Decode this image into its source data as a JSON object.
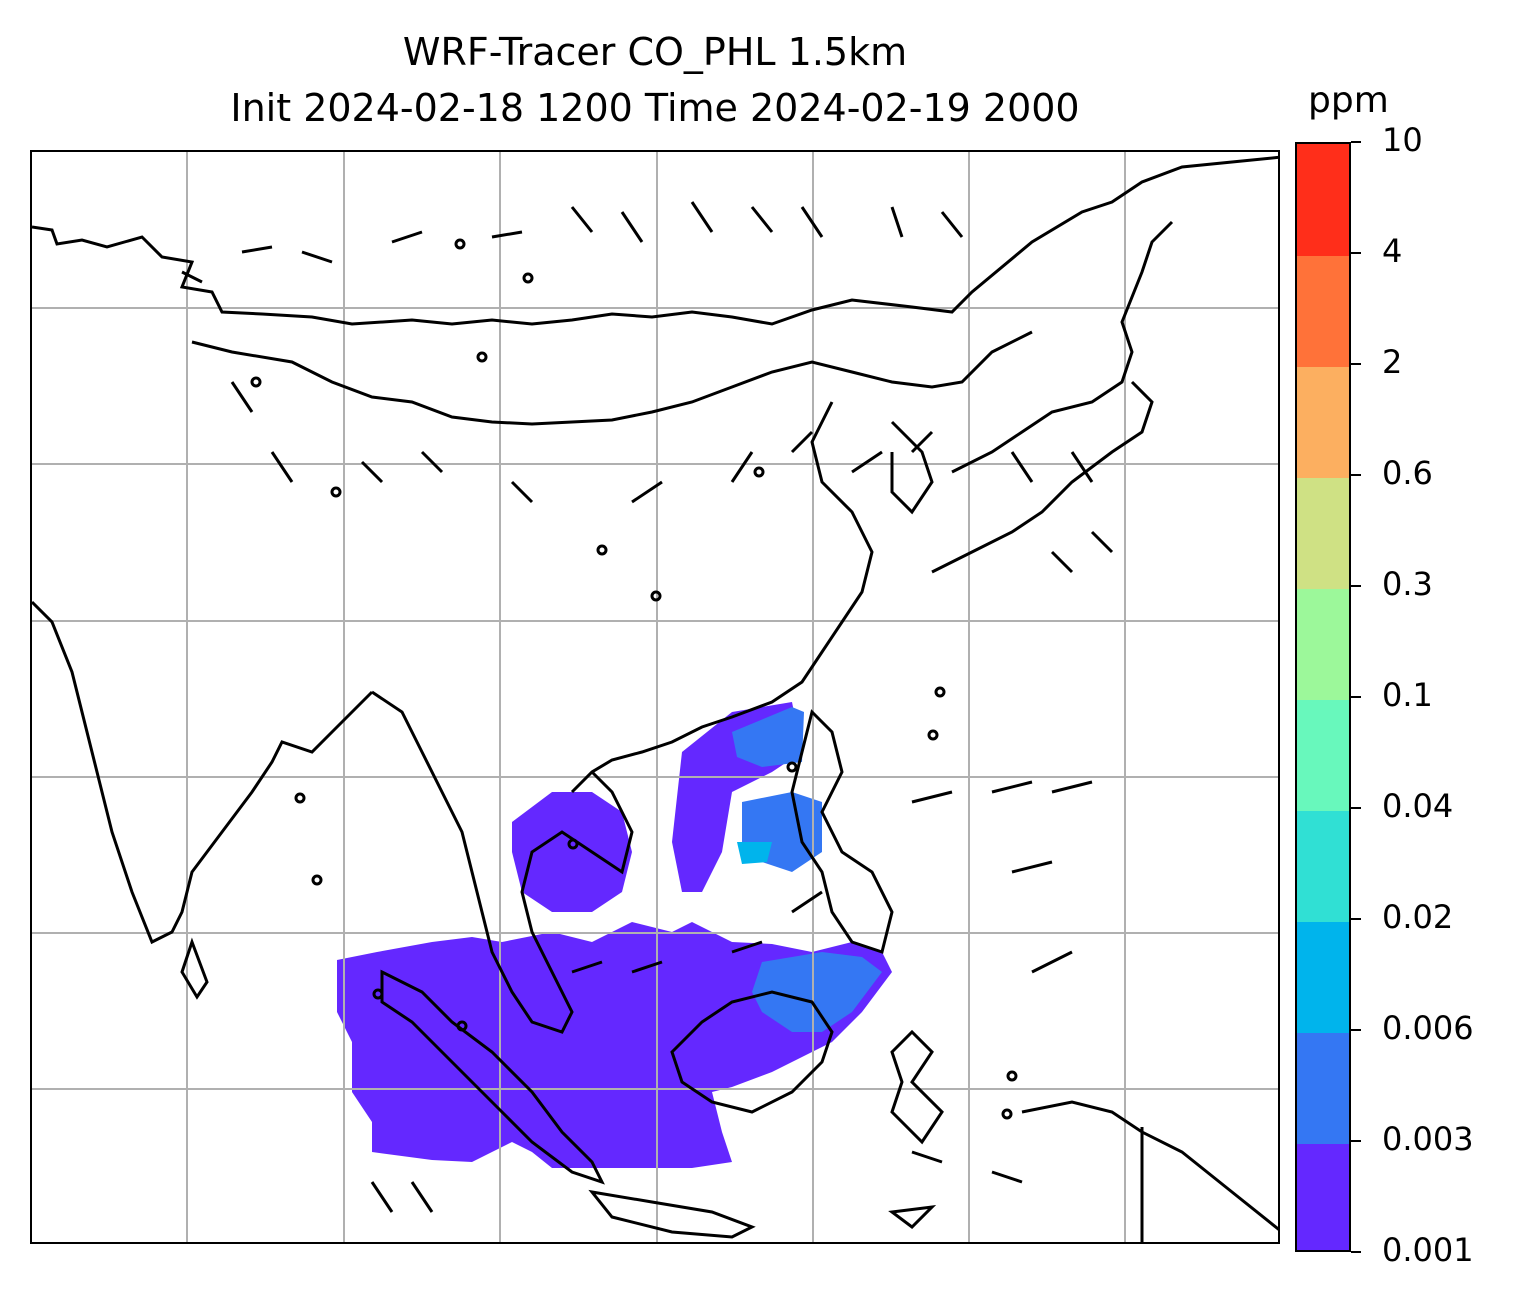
{
  "title": {
    "line1": "WRF-Tracer CO_PHL 1.5km",
    "line2": "Init 2024-02-18 1200 Time 2024-02-19 2000"
  },
  "colorbar": {
    "unit": "ppm",
    "levels": [
      "0.001",
      "0.003",
      "0.006",
      "0.02",
      "0.04",
      "0.1",
      "0.3",
      "0.6",
      "2",
      "4",
      "10"
    ],
    "colors": [
      "#6428ff",
      "#3477f3",
      "#00b4ec",
      "#30e0d4",
      "#68f8bc",
      "#9cf89a",
      "#cfe184",
      "#fcaf60",
      "#ff7239",
      "#ff2e1a"
    ]
  },
  "map": {
    "gridlines": true,
    "gridline_color": "#b0b0b0",
    "coast_color": "#000000",
    "tracer_low_color": "#6428ff",
    "tracer_mid_color": "#3477f3",
    "tracer_high_color": "#00b4ec",
    "wind_barbs": true
  }
}
